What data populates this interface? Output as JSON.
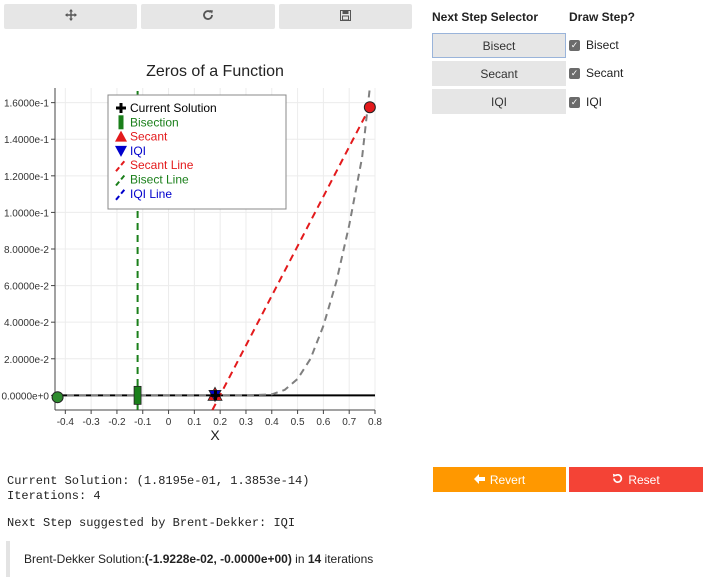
{
  "toolbar": {
    "pan_icon": "move-icon",
    "refresh_icon": "refresh-icon",
    "save_icon": "save-icon"
  },
  "selector": {
    "title": "Next Step Selector",
    "buttons": [
      "Bisect",
      "Secant",
      "IQI"
    ],
    "active": "Bisect"
  },
  "draw_step": {
    "title": "Draw Step?",
    "items": [
      {
        "label": "Bisect",
        "checked": true
      },
      {
        "label": "Secant",
        "checked": true
      },
      {
        "label": "IQI",
        "checked": true
      }
    ]
  },
  "output": {
    "current_solution": "Current Solution: (1.8195e-01, 1.3853e-14)",
    "iterations": "Iterations: 4",
    "next_step": "Next Step suggested by Brent-Dekker: IQI"
  },
  "actions": {
    "revert_label": "Revert",
    "revert_color": "#ff9800",
    "reset_label": "Reset",
    "reset_color": "#f44336"
  },
  "note": {
    "prefix": "Brent-Dekker Solution: ",
    "solution": "(-1.9228e-02, -0.0000e+00)",
    "middle": " in ",
    "iterations": "14",
    "suffix": " iterations"
  },
  "chart_data": {
    "type": "line",
    "title": "Zeros of a Function",
    "xlabel": "X",
    "ylabel": "",
    "xlim": [
      -0.44,
      0.8
    ],
    "ylim": [
      -0.008,
      0.168
    ],
    "x_ticks": [
      -0.4,
      -0.3,
      -0.2,
      -0.1,
      0,
      0.1,
      0.2,
      0.3,
      0.4,
      0.5,
      0.6,
      0.7,
      0.8
    ],
    "x_tick_labels": [
      "-0.4",
      "-0.3",
      "-0.2",
      "-0.1",
      "0",
      "0.1",
      "0.2",
      "0.3",
      "0.4",
      "0.5",
      "0.6",
      "0.7",
      "0.8"
    ],
    "y_ticks": [
      0,
      0.02,
      0.04,
      0.06,
      0.08,
      0.1,
      0.12,
      0.14,
      0.16
    ],
    "y_tick_labels": [
      "0.0000e+0",
      "2.0000e-2",
      "4.0000e-2",
      "6.0000e-2",
      "8.0000e-2",
      "1.0000e-1",
      "1.2000e-1",
      "1.4000e-1",
      "1.6000e-1"
    ],
    "grid": true,
    "legend_position": "top-left",
    "legend": [
      {
        "name": "Current Solution",
        "color": "#000000",
        "marker": "cross"
      },
      {
        "name": "Bisection",
        "color": "#1a7f1a",
        "marker": "bar"
      },
      {
        "name": "Secant",
        "color": "#e31a1c",
        "marker": "triangle-up"
      },
      {
        "name": "IQI",
        "color": "#0000cc",
        "marker": "triangle-down"
      },
      {
        "name": "Secant Line",
        "color": "#e31a1c",
        "marker": "dash"
      },
      {
        "name": "Bisect Line",
        "color": "#1a7f1a",
        "marker": "dash"
      },
      {
        "name": "IQI Line",
        "color": "#0000cc",
        "marker": "dash"
      }
    ],
    "function_curve": {
      "x": [
        -0.44,
        -0.3,
        -0.1,
        0.1,
        0.2,
        0.3,
        0.4,
        0.45,
        0.5,
        0.55,
        0.6,
        0.65,
        0.7,
        0.75,
        0.78
      ],
      "y": [
        0,
        0,
        0,
        0,
        0,
        0,
        0.0005,
        0.003,
        0.009,
        0.02,
        0.038,
        0.062,
        0.093,
        0.13,
        0.168
      ]
    },
    "x_axis_line": {
      "x": [
        -0.44,
        0.8
      ],
      "y": [
        0,
        0
      ]
    },
    "bisect_line": {
      "x": [
        -0.12,
        -0.12
      ],
      "y": [
        -0.008,
        0.168
      ]
    },
    "secant_line": {
      "x": [
        0.17,
        0.78
      ],
      "y": [
        -0.008,
        0.1575
      ]
    },
    "points": [
      {
        "name": "Left Bracket",
        "x": -0.43,
        "y": -0.001,
        "color": "#2e8b2e",
        "marker": "circle"
      },
      {
        "name": "Right Bracket",
        "x": 0.78,
        "y": 0.1575,
        "color": "#e31a1c",
        "marker": "circle"
      },
      {
        "name": "Bisection",
        "x": -0.12,
        "y": 0,
        "color": "#1a7f1a",
        "marker": "bar"
      },
      {
        "name": "Secant",
        "x": 0.18,
        "y": 0,
        "color": "#e31a1c",
        "marker": "triangle-up"
      },
      {
        "name": "IQI",
        "x": 0.18,
        "y": 0,
        "color": "#0000cc",
        "marker": "triangle-down"
      },
      {
        "name": "Current Solution",
        "x": 0.18195,
        "y": 0,
        "color": "#000000",
        "marker": "cross"
      }
    ]
  }
}
